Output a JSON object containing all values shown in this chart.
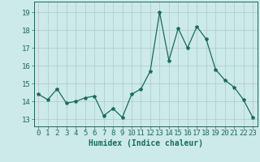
{
  "x": [
    0,
    1,
    2,
    3,
    4,
    5,
    6,
    7,
    8,
    9,
    10,
    11,
    12,
    13,
    14,
    15,
    16,
    17,
    18,
    19,
    20,
    21,
    22,
    23
  ],
  "y": [
    14.4,
    14.1,
    14.7,
    13.9,
    14.0,
    14.2,
    14.3,
    13.2,
    13.6,
    13.1,
    14.4,
    14.7,
    15.7,
    19.0,
    16.3,
    18.1,
    17.0,
    18.2,
    17.5,
    15.8,
    15.2,
    14.8,
    14.1,
    13.1
  ],
  "line_color": "#1a6b5a",
  "marker": "*",
  "marker_size": 3,
  "bg_color": "#cceae7",
  "grid_color": "#b0c8c4",
  "tick_color": "#1a6b5a",
  "xlabel": "Humidex (Indice chaleur)",
  "ylabel_ticks": [
    13,
    14,
    15,
    16,
    17,
    18,
    19
  ],
  "ylim": [
    12.6,
    19.6
  ],
  "xlim": [
    -0.5,
    23.5
  ],
  "xlabel_fontsize": 7,
  "tick_fontsize": 6.5,
  "linewidth": 0.9
}
